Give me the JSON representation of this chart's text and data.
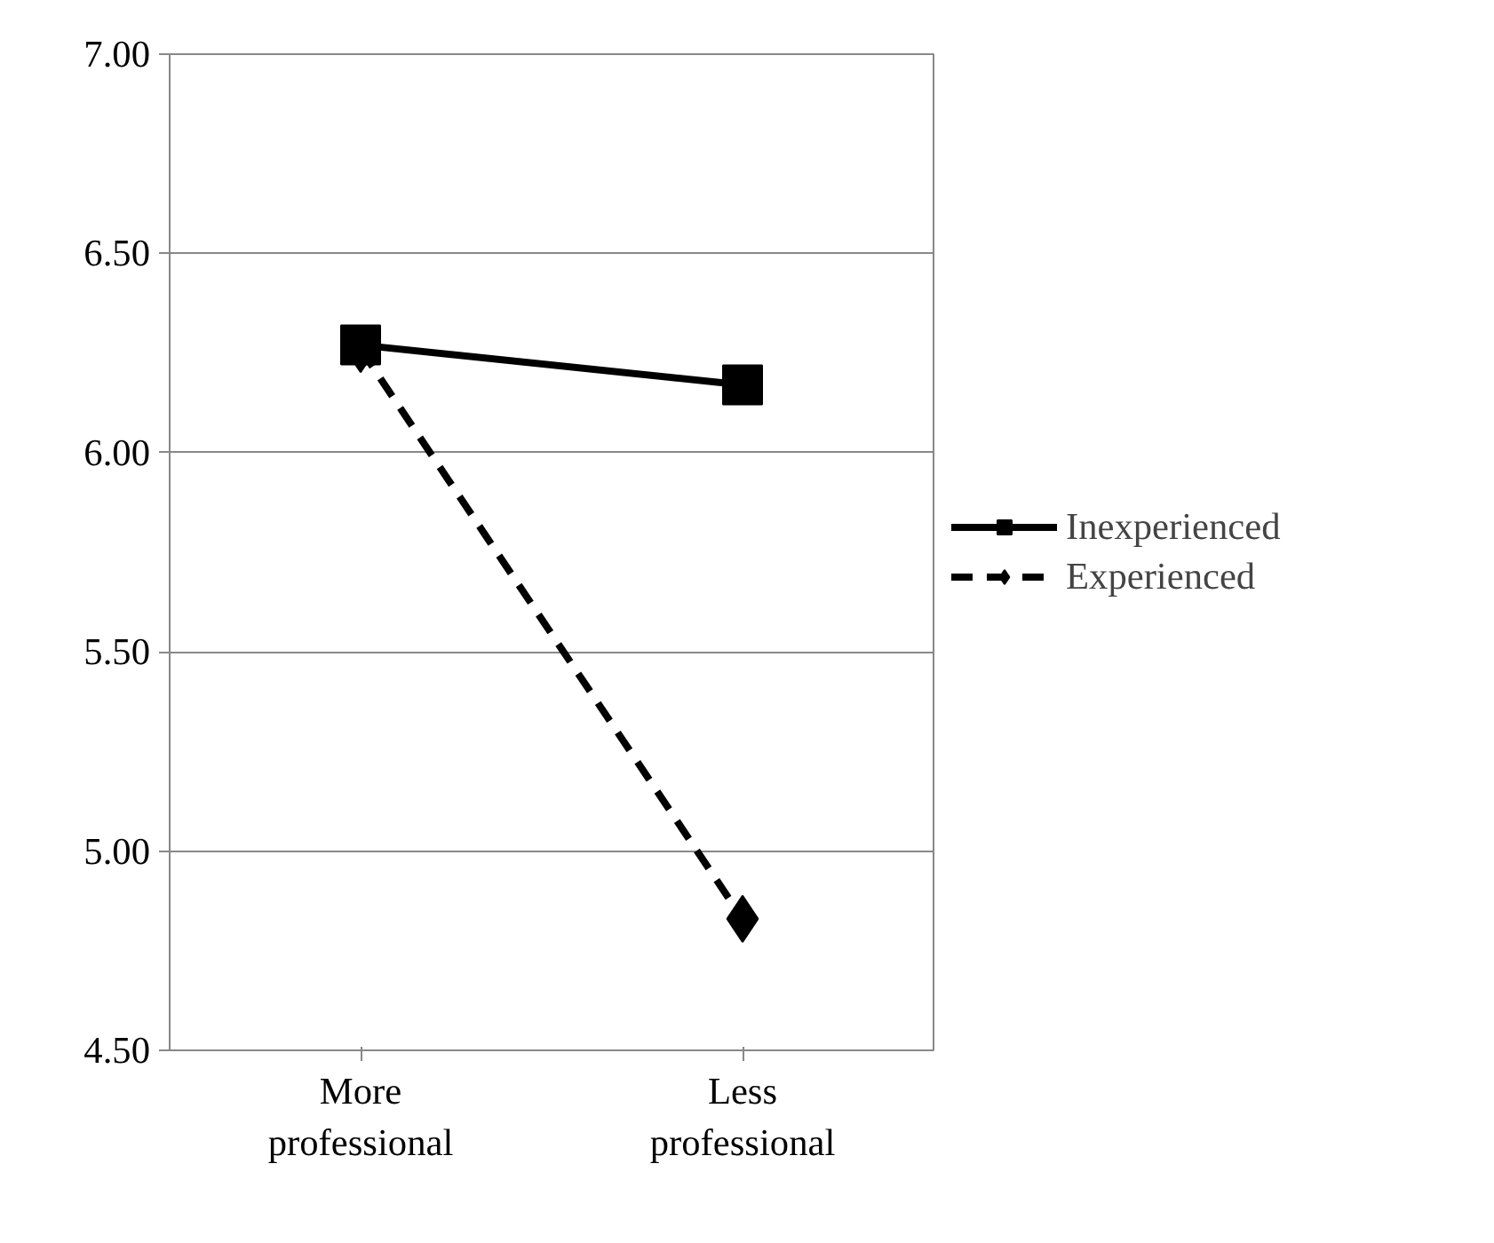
{
  "chart_data": {
    "type": "line",
    "categories": [
      "More\nprofessional",
      "Less\nprofessional"
    ],
    "series": [
      {
        "name": "Inexperienced",
        "color": "#000000",
        "values": [
          6.27,
          6.17
        ],
        "marker": "square",
        "line_style": "solid"
      },
      {
        "name": "Experienced",
        "color": "#000000",
        "values": [
          6.26,
          4.83
        ],
        "marker": "diamond",
        "line_style": "dashed"
      }
    ],
    "ylim": [
      4.5,
      7.0
    ],
    "yticks": [
      {
        "value": 4.5,
        "label": "4.50"
      },
      {
        "value": 5.0,
        "label": "5.00"
      },
      {
        "value": 5.5,
        "label": "5.50"
      },
      {
        "value": 6.0,
        "label": "6.00"
      },
      {
        "value": 6.5,
        "label": "6.50"
      },
      {
        "value": 7.0,
        "label": "7.00"
      }
    ],
    "grid": "y",
    "legend": "right"
  }
}
